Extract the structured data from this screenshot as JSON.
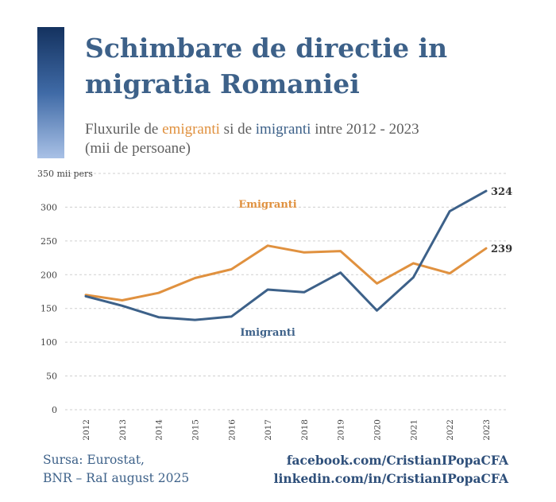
{
  "header": {
    "title": "Schimbare de directie in migratia Romaniei",
    "subtitle_parts": [
      "Fluxurile de ",
      "emigranti",
      " si de ",
      "imigranti",
      " intre 2012 - 2023"
    ],
    "subtitle_line2": "(mii de persoane)"
  },
  "footer": {
    "source_line1": "Sursa: Eurostat,",
    "source_line2": "BNR – RaI august 2025",
    "link1": "facebook.com/CristianIPopaCFA",
    "link2": "linkedin.com/in/CristianIPopaCFA"
  },
  "colors": {
    "emigranti": "#e0913f",
    "imigranti": "#3d6189",
    "title": "#3d6189",
    "grid": "#cfcfcf",
    "tick_text": "#444444"
  },
  "chart_data": {
    "type": "line",
    "x": [
      "2012",
      "2013",
      "2014",
      "2015",
      "2016",
      "2017",
      "2018",
      "2019",
      "2020",
      "2021",
      "2022",
      "2023"
    ],
    "ylim": [
      0,
      350
    ],
    "yticks": [
      0,
      50,
      100,
      150,
      200,
      250,
      300,
      350
    ],
    "y_top_label": "350 mii pers",
    "grid": "horizontal dashed",
    "series": [
      {
        "name": "Emigranti",
        "values": [
          170,
          162,
          173,
          195,
          208,
          243,
          233,
          235,
          187,
          217,
          202,
          239
        ],
        "end_label": "239"
      },
      {
        "name": "Imigranti",
        "values": [
          168,
          154,
          137,
          133,
          138,
          178,
          174,
          203,
          147,
          196,
          294,
          324
        ],
        "end_label": "324"
      }
    ]
  }
}
